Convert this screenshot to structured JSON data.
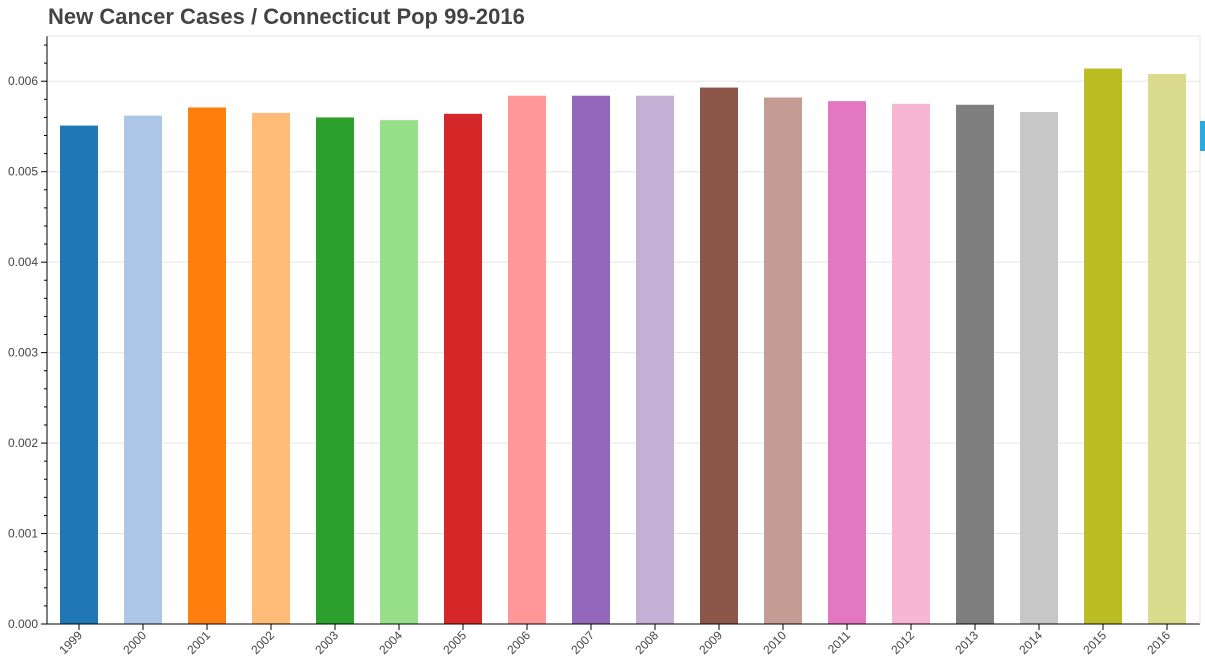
{
  "chart_data": {
    "type": "bar",
    "title": "New Cancer Cases / Connecticut Pop 99-2016",
    "xlabel": "",
    "ylabel": "",
    "categories": [
      "1999",
      "2000",
      "2001",
      "2002",
      "2003",
      "2004",
      "2005",
      "2006",
      "2007",
      "2008",
      "2009",
      "2010",
      "2011",
      "2012",
      "2013",
      "2014",
      "2015",
      "2016"
    ],
    "values": [
      0.00551,
      0.00562,
      0.00571,
      0.00565,
      0.0056,
      0.00557,
      0.00564,
      0.00584,
      0.00584,
      0.00584,
      0.00593,
      0.00582,
      0.00578,
      0.00575,
      0.00574,
      0.00566,
      0.00614,
      0.00608
    ],
    "colors": [
      "#1f77b4",
      "#aec7e8",
      "#ff7f0e",
      "#ffbb78",
      "#2ca02c",
      "#98df8a",
      "#d62728",
      "#ff9896",
      "#9467bd",
      "#c5b0d5",
      "#8c564b",
      "#c49c94",
      "#e377c2",
      "#f7b6d2",
      "#7f7f7f",
      "#c7c7c7",
      "#bcbd22",
      "#dbdb8d"
    ],
    "ylim": [
      0,
      0.0065
    ],
    "yticks": [
      "0.000",
      "0.001",
      "0.002",
      "0.003",
      "0.004",
      "0.005",
      "0.006"
    ],
    "grid": true,
    "legend": "none"
  }
}
